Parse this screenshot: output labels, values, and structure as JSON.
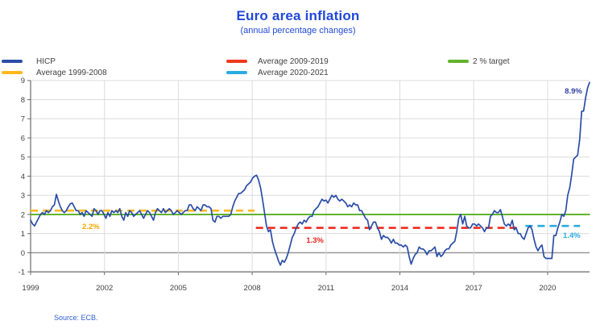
{
  "header": {
    "title": "Euro area inflation",
    "subtitle": "(annual percentage changes)"
  },
  "source": "Source: ECB.",
  "legend": {
    "items": [
      {
        "label": "HICP",
        "color": "#2a4da8",
        "style": "solid"
      },
      {
        "label": "Average 1999-2008",
        "color": "#ffb81c",
        "style": "dashed"
      },
      {
        "label": "Average 2009-2019",
        "color": "#ee3a1c",
        "style": "dashed"
      },
      {
        "label": "Average 2020-2021",
        "color": "#29abe2",
        "style": "dashed"
      },
      {
        "label": "2 % target",
        "color": "#62b32e",
        "style": "solid"
      }
    ]
  },
  "chart_data": {
    "type": "line",
    "title": "Euro area inflation",
    "subtitle": "(annual percentage changes)",
    "xlabel": "",
    "ylabel": "",
    "ylim": [
      -1,
      9
    ],
    "grid": true,
    "x_ticks": [
      1999,
      2002,
      2005,
      2008,
      2011,
      2014,
      2017,
      2020
    ],
    "y_ticks": [
      -1,
      0,
      1,
      2,
      3,
      4,
      5,
      6,
      7,
      8,
      9
    ],
    "x_start_year": 1999.0,
    "x_step_months": 1,
    "x_end_year": 2022.5,
    "series": [
      {
        "name": "HICP",
        "color": "#2a4da8",
        "values": [
          1.7,
          1.5,
          1.4,
          1.6,
          1.8,
          2.0,
          2.1,
          2.0,
          2.2,
          2.1,
          2.2,
          2.4,
          2.5,
          3.05,
          2.7,
          2.4,
          2.2,
          2.1,
          2.2,
          2.4,
          2.55,
          2.6,
          2.4,
          2.2,
          2.2,
          2.0,
          2.1,
          1.9,
          2.2,
          2.1,
          2.0,
          1.9,
          2.3,
          2.2,
          2.0,
          2.2,
          2.2,
          2.0,
          1.8,
          2.1,
          1.9,
          2.2,
          2.1,
          2.2,
          2.1,
          2.3,
          1.9,
          1.7,
          2.1,
          1.9,
          2.2,
          2.1,
          1.9,
          2.0,
          2.1,
          2.2,
          2.0,
          1.8,
          2.0,
          2.2,
          2.1,
          1.9,
          1.7,
          2.1,
          2.3,
          2.2,
          2.1,
          2.3,
          2.1,
          2.2,
          2.3,
          2.2,
          2.0,
          2.1,
          2.2,
          2.1,
          2.0,
          2.1,
          2.2,
          2.2,
          2.5,
          2.5,
          2.3,
          2.2,
          2.4,
          2.3,
          2.2,
          2.5,
          2.5,
          2.4,
          2.4,
          2.3,
          1.7,
          1.6,
          1.9,
          1.9,
          1.8,
          1.9,
          1.9,
          1.9,
          1.9,
          2.0,
          2.4,
          2.7,
          2.9,
          3.1,
          3.1,
          3.2,
          3.3,
          3.5,
          3.6,
          3.7,
          3.9,
          4.0,
          4.05,
          3.8,
          3.4,
          2.8,
          2.1,
          1.4,
          1.1,
          1.2,
          0.6,
          0.2,
          -0.1,
          -0.4,
          -0.65,
          -0.4,
          -0.5,
          -0.3,
          0.0,
          0.4,
          0.8,
          1.0,
          1.3,
          1.5,
          1.6,
          1.5,
          1.7,
          1.6,
          1.8,
          1.9,
          1.9,
          2.2,
          2.3,
          2.4,
          2.6,
          2.8,
          2.7,
          2.75,
          2.6,
          2.8,
          3.0,
          2.9,
          3.0,
          2.8,
          2.7,
          2.8,
          2.7,
          2.6,
          2.4,
          2.5,
          2.4,
          2.6,
          2.5,
          2.5,
          2.2,
          2.2,
          2.0,
          1.8,
          1.7,
          1.2,
          1.4,
          1.6,
          1.6,
          1.3,
          1.1,
          0.7,
          0.9,
          0.8,
          0.8,
          0.7,
          0.5,
          0.7,
          0.5,
          0.5,
          0.4,
          0.4,
          0.3,
          0.4,
          0.3,
          -0.2,
          -0.6,
          -0.3,
          -0.1,
          0.0,
          0.3,
          0.2,
          0.2,
          0.1,
          -0.1,
          0.1,
          0.1,
          0.2,
          0.3,
          -0.2,
          0.0,
          -0.2,
          -0.1,
          0.1,
          0.2,
          0.2,
          0.4,
          0.5,
          0.6,
          1.1,
          1.8,
          2.0,
          1.5,
          1.9,
          1.4,
          1.3,
          1.3,
          1.5,
          1.5,
          1.4,
          1.5,
          1.4,
          1.3,
          1.1,
          1.3,
          1.3,
          1.9,
          2.0,
          2.2,
          2.1,
          2.1,
          2.25,
          1.9,
          1.5,
          1.4,
          1.5,
          1.4,
          1.7,
          1.2,
          1.3,
          1.0,
          1.0,
          0.8,
          0.7,
          1.0,
          1.3,
          1.4,
          1.2,
          0.7,
          0.3,
          0.1,
          0.3,
          0.4,
          -0.2,
          -0.3,
          -0.3,
          -0.3,
          -0.3,
          0.9,
          0.9,
          1.3,
          1.6,
          2.0,
          1.9,
          2.2,
          3.0,
          3.4,
          4.1,
          4.9,
          5.0,
          5.1,
          5.9,
          7.4,
          7.4,
          8.1,
          8.6,
          8.9
        ]
      }
    ],
    "reference_lines": [
      {
        "name": "Average 1999-2008",
        "value": 2.2,
        "color": "#ffb81c",
        "style": "dashed",
        "from": 1999.0,
        "to": 2008.1
      },
      {
        "name": "Average 2009-2019",
        "value": 1.3,
        "color": "#ee2a1c",
        "style": "dashed",
        "from": 2008.15,
        "to": 2018.85
      },
      {
        "name": "Average 2020-2021",
        "value": 1.4,
        "color": "#29abe2",
        "style": "dashed",
        "from": 2019.1,
        "to": 2021.32
      },
      {
        "name": "2 % target",
        "value": 2.0,
        "color": "#62b32e",
        "style": "solid",
        "from": 1999.0,
        "to": 2021.72
      }
    ],
    "annotations": [
      {
        "text": "2.2%",
        "color": "#f5a800",
        "year": 2001.45,
        "value": 1.37
      },
      {
        "text": "1.3%",
        "color": "#e8231a",
        "year": 2010.55,
        "value": 0.65
      },
      {
        "text": "1.4%",
        "color": "#29abe2",
        "year": 2020.98,
        "value": 0.9
      },
      {
        "text": "8.9%",
        "color": "#2f3fa0",
        "year": 2021.05,
        "value": 8.44
      }
    ],
    "legend_position": "top"
  }
}
